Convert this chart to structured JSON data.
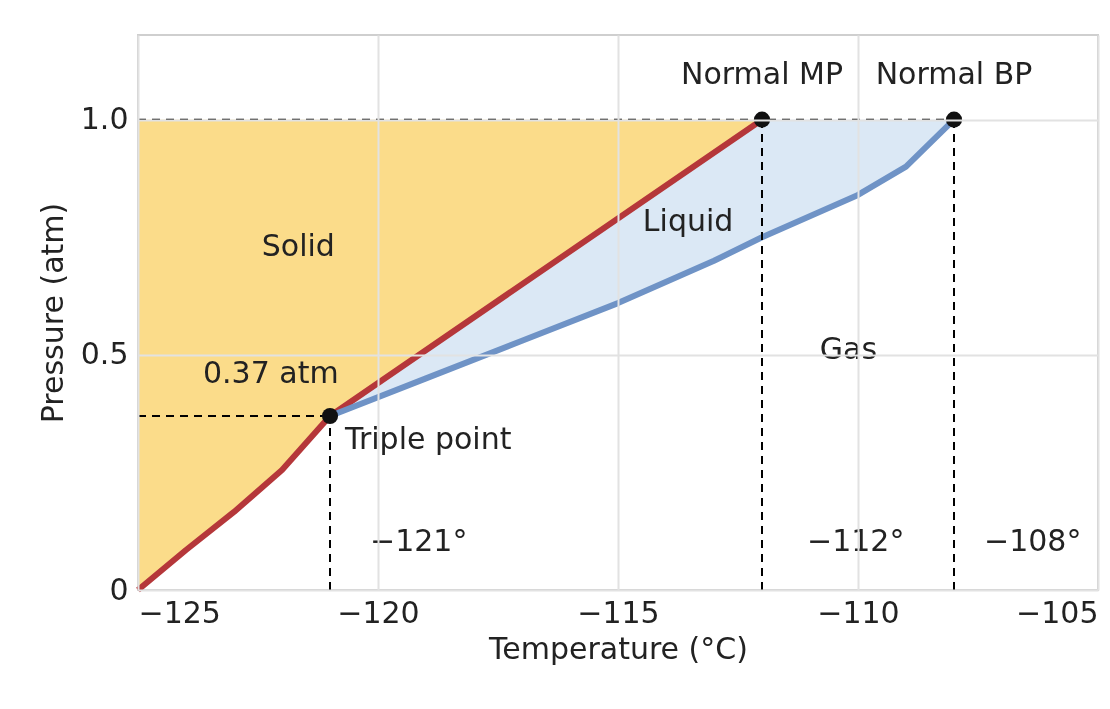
{
  "chart_data": {
    "type": "line",
    "xlabel": "Temperature (°C)",
    "ylabel": "Pressure (atm)",
    "xlim": [
      -125,
      -105
    ],
    "ylim": [
      0,
      1.18
    ],
    "xticks": [
      {
        "value": -125,
        "label": "−125"
      },
      {
        "value": -120,
        "label": "−120"
      },
      {
        "value": -115,
        "label": "−115"
      },
      {
        "value": -110,
        "label": "−110"
      },
      {
        "value": -105,
        "label": "−105"
      }
    ],
    "yticks": [
      0,
      0.5,
      {
        "value": 1,
        "label": "1.0"
      }
    ],
    "grid": true,
    "series": [
      {
        "color": "#b5373a",
        "x": [
          -125,
          -124,
          -123,
          -122,
          -121,
          -112
        ],
        "values": [
          0,
          0.085,
          0.166,
          0.255,
          0.37,
          1.0
        ]
      },
      {
        "color": "#6f93c6",
        "x": [
          -121,
          -119,
          -117,
          -115,
          -113,
          -112,
          -110,
          -109,
          -108
        ],
        "values": [
          0.37,
          0.45,
          0.53,
          0.61,
          0.7,
          0.75,
          0.84,
          0.9,
          1.0
        ]
      },
      {
        "color": "#000000",
        "line_style": "dashed",
        "x": [
          -125,
          -108
        ],
        "values": [
          1,
          1
        ]
      },
      {
        "color": "#000000",
        "line_style": "dashed",
        "x": [
          -125,
          -121
        ],
        "values": [
          0.37,
          0.37
        ]
      },
      {
        "color": "#000000",
        "line_style": "dashed",
        "x": [
          -121,
          -121
        ],
        "values": [
          0,
          0.37
        ]
      },
      {
        "color": "#000000",
        "line_style": "dashed",
        "x": [
          -112,
          -112
        ],
        "values": [
          0,
          1
        ]
      },
      {
        "color": "#000000",
        "line_style": "dashed",
        "x": [
          -108,
          -108
        ],
        "values": [
          0,
          1
        ]
      },
      {
        "type": "scatter",
        "color": "#111111",
        "marker": "circle",
        "x": [
          -121,
          -112,
          -108
        ],
        "values": [
          0.37,
          1,
          1
        ]
      }
    ],
    "annotations": [
      {
        "text": "Normal MP",
        "x": -112,
        "y": 1.0
      },
      {
        "text": "Normal BP",
        "x": -108,
        "y": 1.0
      },
      {
        "text": "Triple point",
        "x": -121,
        "y": 0.37
      },
      {
        "text": "0.37 atm",
        "x": -125,
        "y": 0.37
      },
      {
        "text": "−121°",
        "x": -121,
        "y": 0
      },
      {
        "text": "−112°",
        "x": -112,
        "y": 0
      },
      {
        "text": "−108°",
        "x": -108,
        "y": 0
      },
      "Solid",
      "Liquid",
      "Gas"
    ]
  }
}
